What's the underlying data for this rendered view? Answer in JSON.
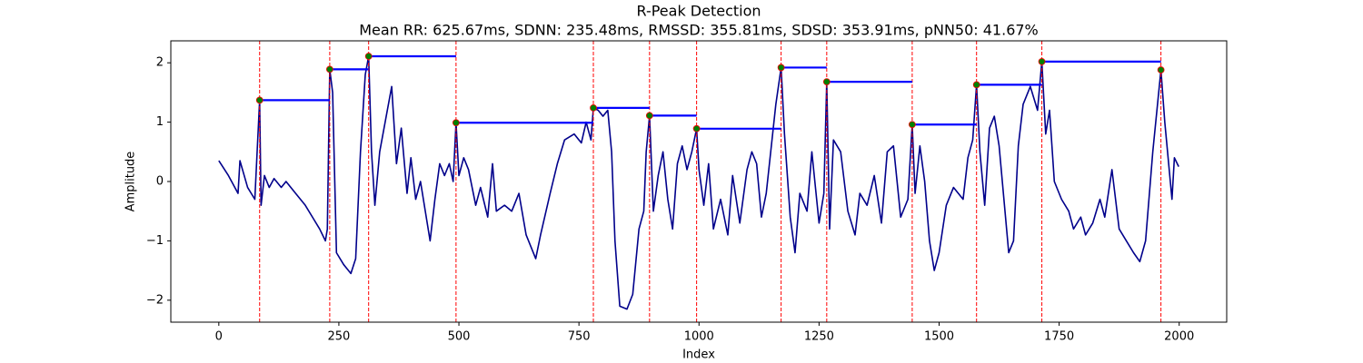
{
  "chart_data": {
    "type": "line",
    "title": "R-Peak Detection",
    "subtitle": "Mean RR: 625.67ms, SDNN: 235.48ms, RMSSD: 355.81ms, SDSD: 353.91ms, pNN50: 41.67%",
    "x_label": "Index",
    "y_label": "Amplitude",
    "xlim": [
      -99.95,
      2098.95
    ],
    "ylim": [
      -2.37,
      2.37
    ],
    "xticks": [
      0,
      250,
      500,
      750,
      1000,
      1250,
      1500,
      1750,
      2000
    ],
    "yticks": [
      {
        "value": -2,
        "label": "−2"
      },
      {
        "value": -1,
        "label": "−1"
      },
      0,
      1,
      2
    ],
    "grid": false,
    "series": [
      {
        "color": "#00008b",
        "x": [
          0,
          20,
          40,
          44,
          60,
          75,
          85,
          88,
          95,
          105,
          115,
          130,
          140,
          160,
          180,
          195,
          210,
          222,
          226,
          231,
          237,
          245,
          260,
          275,
          285,
          295,
          305,
          312,
          318,
          325,
          335,
          360,
          370,
          380,
          392,
          400,
          410,
          420,
          430,
          440,
          450,
          460,
          470,
          480,
          488,
          494,
          500,
          510,
          520,
          535,
          545,
          560,
          570,
          578,
          595,
          610,
          625,
          640,
          660,
          670,
          690,
          705,
          720,
          740,
          755,
          765,
          775,
          780,
          790,
          800,
          810,
          818,
          825,
          835,
          850,
          862,
          875,
          885,
          890,
          897,
          905,
          915,
          925,
          935,
          945,
          955,
          965,
          975,
          985,
          995,
          1000,
          1010,
          1020,
          1030,
          1045,
          1060,
          1070,
          1085,
          1100,
          1110,
          1120,
          1130,
          1140,
          1160,
          1171,
          1178,
          1190,
          1200,
          1210,
          1225,
          1235,
          1250,
          1260,
          1266,
          1272,
          1280,
          1295,
          1310,
          1325,
          1335,
          1350,
          1365,
          1380,
          1392,
          1405,
          1420,
          1435,
          1444,
          1450,
          1460,
          1470,
          1480,
          1490,
          1500,
          1515,
          1530,
          1550,
          1560,
          1570,
          1578,
          1585,
          1595,
          1605,
          1615,
          1625,
          1635,
          1645,
          1655,
          1665,
          1675,
          1690,
          1705,
          1714,
          1722,
          1730,
          1740,
          1755,
          1770,
          1780,
          1795,
          1805,
          1820,
          1835,
          1845,
          1860,
          1875,
          1890,
          1905,
          1918,
          1930,
          1945,
          1962,
          1970,
          1985,
          1990,
          1999
        ],
        "values": [
          0.35,
          0.1,
          -0.2,
          0.35,
          -0.1,
          -0.3,
          1.37,
          -0.4,
          0.1,
          -0.1,
          0.05,
          -0.1,
          0.0,
          -0.2,
          -0.4,
          -0.6,
          -0.8,
          -1.0,
          -0.8,
          1.89,
          1.5,
          -1.2,
          -1.4,
          -1.55,
          -1.3,
          0.5,
          1.8,
          2.11,
          0.5,
          -0.4,
          0.5,
          1.6,
          0.3,
          0.9,
          -0.2,
          0.4,
          -0.3,
          0.0,
          -0.5,
          -1.0,
          -0.3,
          0.3,
          0.1,
          0.3,
          0.0,
          0.99,
          0.1,
          0.4,
          0.2,
          -0.4,
          -0.1,
          -0.6,
          0.3,
          -0.5,
          -0.4,
          -0.5,
          -0.2,
          -0.9,
          -1.3,
          -0.9,
          -0.2,
          0.3,
          0.7,
          0.8,
          0.65,
          1.0,
          0.7,
          1.24,
          1.2,
          1.1,
          1.2,
          0.5,
          -1.0,
          -2.1,
          -2.15,
          -1.9,
          -0.8,
          -0.5,
          0.5,
          1.11,
          -0.5,
          0.1,
          0.5,
          -0.3,
          -0.8,
          0.3,
          0.6,
          0.2,
          0.5,
          0.89,
          0.2,
          -0.4,
          0.3,
          -0.8,
          -0.3,
          -0.9,
          0.1,
          -0.7,
          0.2,
          0.5,
          0.3,
          -0.6,
          -0.2,
          1.3,
          1.92,
          0.8,
          -0.6,
          -1.2,
          -0.2,
          -0.5,
          0.5,
          -0.7,
          -0.2,
          1.68,
          -0.8,
          0.7,
          0.5,
          -0.5,
          -0.9,
          -0.2,
          -0.4,
          0.1,
          -0.7,
          0.5,
          0.6,
          -0.6,
          -0.3,
          0.96,
          -0.2,
          0.6,
          0.0,
          -1.0,
          -1.5,
          -1.2,
          -0.4,
          -0.1,
          -0.3,
          0.4,
          0.7,
          1.63,
          0.5,
          -0.4,
          0.9,
          1.1,
          0.6,
          -0.3,
          -1.2,
          -1.0,
          0.6,
          1.3,
          1.6,
          1.2,
          2.02,
          0.8,
          1.2,
          0.0,
          -0.3,
          -0.5,
          -0.8,
          -0.6,
          -0.9,
          -0.7,
          -0.3,
          -0.6,
          0.2,
          -0.8,
          -1.0,
          -1.2,
          -1.35,
          -1.0,
          0.5,
          1.88,
          1.0,
          -0.3,
          0.4,
          0.25
        ]
      }
    ],
    "peaks": {
      "x": [
        85,
        231,
        312,
        494,
        780,
        897,
        995,
        1171,
        1266,
        1444,
        1578,
        1714,
        1962
      ],
      "values": [
        1.37,
        1.89,
        2.11,
        0.99,
        1.24,
        1.11,
        0.89,
        1.92,
        1.68,
        0.96,
        1.63,
        2.02,
        1.88
      ],
      "color": "#008000",
      "edge_color": "#ff0000",
      "line_color": "#ff0000",
      "interval_color": "#0000ff"
    }
  }
}
